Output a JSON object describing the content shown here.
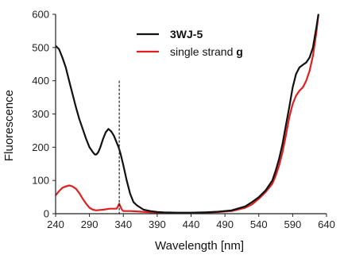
{
  "chart_data": {
    "type": "line",
    "xlabel": "Wavelength [nm]",
    "ylabel": "Fluorescence",
    "xlim": [
      240,
      640
    ],
    "ylim": [
      0,
      600
    ],
    "x_ticks": [
      "240",
      "290",
      "340",
      "390",
      "440",
      "490",
      "540",
      "590",
      "640"
    ],
    "y_ticks": [
      "0",
      "100",
      "200",
      "300",
      "400",
      "500",
      "600"
    ],
    "grid": false,
    "legend": {
      "position": "top-center"
    },
    "annotations": [
      {
        "type": "vertical-dashed-line",
        "x": 334,
        "y_top": 400
      }
    ],
    "series": [
      {
        "name": "3WJ-5",
        "bold": true,
        "color": "#111111",
        "x": [
          240,
          245,
          250,
          255,
          260,
          265,
          270,
          275,
          280,
          285,
          290,
          295,
          298,
          300,
          303,
          306,
          310,
          314,
          318,
          322,
          326,
          330,
          333,
          336,
          340,
          345,
          350,
          355,
          360,
          370,
          380,
          390,
          400,
          420,
          440,
          460,
          480,
          500,
          520,
          530,
          540,
          550,
          560,
          565,
          570,
          575,
          580,
          585,
          590,
          595,
          600,
          605,
          610,
          615,
          620,
          625,
          628
        ],
        "y": [
          505,
          495,
          470,
          440,
          400,
          360,
          320,
          285,
          255,
          225,
          200,
          185,
          178,
          178,
          185,
          200,
          225,
          245,
          255,
          248,
          235,
          215,
          200,
          180,
          145,
          100,
          60,
          35,
          25,
          12,
          8,
          5,
          4,
          3,
          3,
          4,
          6,
          10,
          22,
          35,
          50,
          70,
          100,
          130,
          165,
          210,
          265,
          320,
          380,
          420,
          440,
          448,
          455,
          470,
          500,
          560,
          600
        ]
      },
      {
        "name": "single strand g",
        "bold_suffix": "g",
        "color": "#e02020",
        "x": [
          240,
          245,
          250,
          255,
          260,
          265,
          270,
          275,
          280,
          285,
          290,
          295,
          300,
          310,
          320,
          330,
          332,
          334,
          336,
          338,
          340,
          350,
          360,
          380,
          400,
          420,
          440,
          460,
          480,
          500,
          520,
          530,
          540,
          550,
          560,
          565,
          570,
          575,
          580,
          585,
          590,
          595,
          600,
          605,
          610,
          615,
          620,
          625,
          628
        ],
        "y": [
          55,
          68,
          78,
          82,
          85,
          82,
          75,
          62,
          45,
          30,
          18,
          12,
          10,
          12,
          15,
          15,
          22,
          30,
          20,
          12,
          8,
          8,
          7,
          4,
          3,
          2,
          2,
          3,
          5,
          8,
          18,
          28,
          45,
          65,
          90,
          115,
          145,
          185,
          235,
          290,
          330,
          355,
          370,
          380,
          400,
          430,
          475,
          545,
          600
        ]
      }
    ]
  }
}
